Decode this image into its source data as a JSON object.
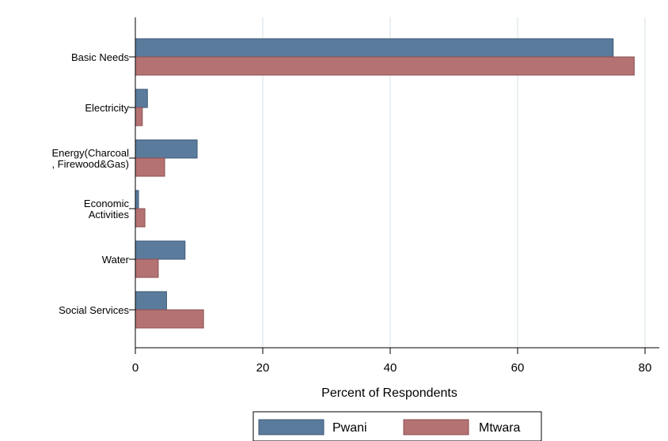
{
  "chart_data": {
    "type": "bar",
    "orientation": "horizontal",
    "categories": [
      [
        "Basic Needs"
      ],
      [
        "Electricity"
      ],
      [
        "Energy(Charcoal",
        ", Firewood&Gas)"
      ],
      [
        "Economic",
        "Activities"
      ],
      [
        "Water"
      ],
      [
        "Social Services"
      ]
    ],
    "series": [
      {
        "name": "Pwani",
        "color": "#5b7b9c",
        "values": [
          75.0,
          1.9,
          9.7,
          0.5,
          7.8,
          4.9
        ]
      },
      {
        "name": "Mtwara",
        "color": "#b47272",
        "values": [
          78.3,
          1.1,
          4.6,
          1.5,
          3.6,
          10.7
        ]
      }
    ],
    "xlabel": "Percent of Respondents",
    "xlim": [
      0,
      82
    ],
    "xticks": [
      "0",
      "20",
      "40",
      "60",
      "80"
    ],
    "grid": true,
    "legend": "bottom"
  }
}
